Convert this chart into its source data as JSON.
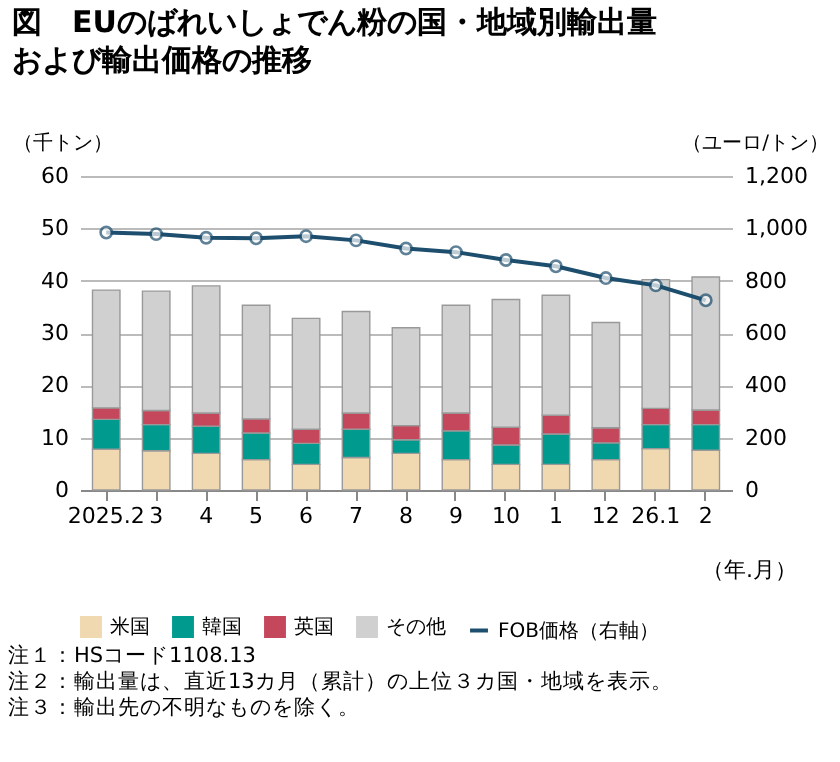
{
  "chart_data": {
    "type": "bar",
    "title": "図　EUのばれいしょでん粉の国・地域別輸出量および輸出価格の推移",
    "categories": [
      "2025.2",
      "3",
      "4",
      "5",
      "6",
      "7",
      "8",
      "9",
      "10",
      "1",
      "12",
      "26.1",
      "2"
    ],
    "stacked": true,
    "xlabel": "（年.月）",
    "ylabel": "（千トン）",
    "y2label": "（ユーロ/トン）",
    "series": [
      {
        "name": "米国",
        "color": "#f0d9b0",
        "values": [
          7.8,
          7.5,
          7.0,
          5.8,
          4.9,
          6.2,
          7.0,
          5.8,
          4.9,
          4.9,
          5.8,
          7.9,
          7.6
        ]
      },
      {
        "name": "韓国",
        "color": "#009a8e",
        "values": [
          5.7,
          5.0,
          5.2,
          5.1,
          4.0,
          5.4,
          2.6,
          5.5,
          3.7,
          5.8,
          3.2,
          4.6,
          4.9
        ]
      },
      {
        "name": "英国",
        "color": "#c5475c",
        "values": [
          2.2,
          2.7,
          2.5,
          2.7,
          2.7,
          3.1,
          2.7,
          3.4,
          3.4,
          3.6,
          2.9,
          3.1,
          2.8
        ]
      },
      {
        "name": "その他",
        "color": "#d0d0d0",
        "values": [
          22.5,
          22.8,
          24.3,
          21.7,
          21.2,
          19.4,
          18.7,
          20.6,
          24.4,
          22.9,
          20.1,
          24.6,
          25.4
        ]
      },
      {
        "name": "FOB価格（右軸）",
        "type": "line",
        "axis": "y2",
        "color": "#1d4e6e",
        "values": [
          984,
          978,
          964,
          962,
          970,
          954,
          923,
          909,
          879,
          855,
          810,
          782,
          725
        ]
      }
    ],
    "ylim": [
      0,
      60
    ],
    "yticks": [
      0,
      10,
      20,
      30,
      40,
      50,
      60
    ],
    "y2lim": [
      0,
      1200
    ],
    "y2ticks": [
      0,
      {
        "value": 200,
        "label": "200"
      },
      {
        "value": 400,
        "label": "400"
      },
      {
        "value": 600,
        "label": "600"
      },
      {
        "value": 800,
        "label": "800"
      },
      {
        "value": 1000,
        "label": "1,000"
      },
      {
        "value": 1200,
        "label": "1,200"
      }
    ],
    "grid": "y",
    "legend": "bottom",
    "marker": "circle",
    "line_style": "solid",
    "annotations": [
      "注１：HSコード1108.13",
      "注２：輸出量は、直近13カ月（累計）の上位３カ国・地域を表示。",
      "注３：輸出先の不明なものを除く。"
    ]
  }
}
